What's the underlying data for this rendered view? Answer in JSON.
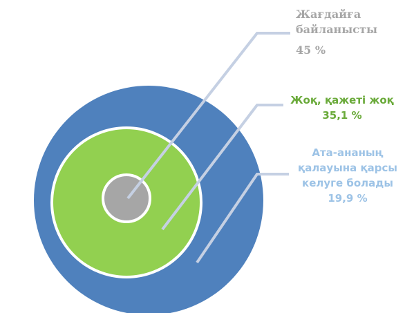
{
  "chart_data": {
    "type": "rings",
    "categories": [
      "Жағдайға байланысты",
      "Жоқ, қажеті жоқ",
      "Ата-ананың қалауына қарсы келуге болады"
    ],
    "values": [
      45,
      35.1,
      19.9
    ],
    "value_labels": [
      "45 %",
      "35,1 %",
      "19,9 %"
    ],
    "colors": [
      "#a6a6a6",
      "#92d050",
      "#4f81bd"
    ]
  }
}
